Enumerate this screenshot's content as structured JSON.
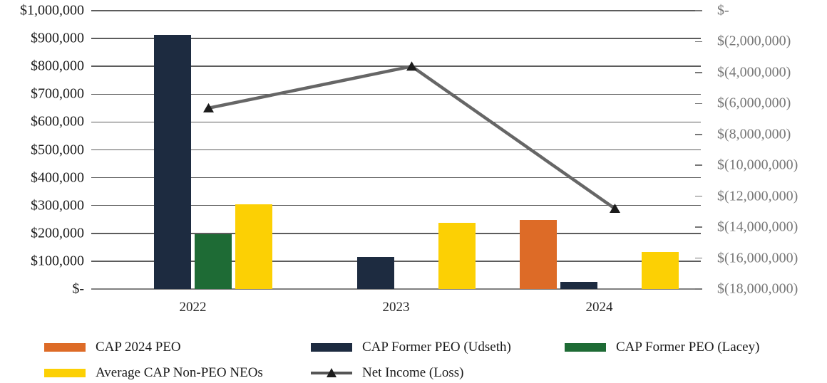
{
  "chart_data": {
    "type": "bar",
    "subtype": "grouped-bars-with-line-combo",
    "title": "",
    "categories": [
      "2022",
      "2023",
      "2024"
    ],
    "series": [
      {
        "name": "CAP 2024 PEO",
        "type": "bar",
        "color": "#dd6b27",
        "axis": "left",
        "values": [
          0,
          0,
          248000
        ]
      },
      {
        "name": "CAP Former PEO (Udseth)",
        "type": "bar",
        "color": "#1d2b40",
        "axis": "left",
        "values": [
          913000,
          115000,
          26000
        ]
      },
      {
        "name": "CAP Former PEO (Lacey)",
        "type": "bar",
        "color": "#1e6b35",
        "axis": "left",
        "values": [
          196000,
          0,
          0
        ]
      },
      {
        "name": "Average CAP Non-PEO NEOs",
        "type": "bar",
        "color": "#fcd004",
        "axis": "left",
        "values": [
          305000,
          237000,
          134000
        ]
      },
      {
        "name": "Net Income (Loss)",
        "type": "line",
        "color": "#666666",
        "marker": "triangle",
        "marker_color": "#1c1c1c",
        "axis": "right",
        "values": [
          -6300000,
          -3600000,
          -12800000
        ]
      }
    ],
    "left_axis": {
      "min": 0,
      "max": 1000000,
      "tick_step": 100000,
      "ticks": [
        "$1,000,000",
        "$900,000",
        "$800,000",
        "$700,000",
        "$600,000",
        "$500,000",
        "$400,000",
        "$300,000",
        "$200,000",
        "$100,000",
        "$-"
      ]
    },
    "right_axis": {
      "min": -18000000,
      "max": 0,
      "tick_step": 2000000,
      "ticks": [
        "$-",
        "$(2,000,000)",
        "$(4,000,000)",
        "$(6,000,000)",
        "$(8,000,000)",
        "$(10,000,000)",
        "$(12,000,000)",
        "$(14,000,000)",
        "$(16,000,000)",
        "$(18,000,000)"
      ]
    },
    "grid": "horizontal",
    "legend_position": "bottom",
    "legend": [
      {
        "label": "CAP 2024 PEO",
        "glyph": "rect",
        "color": "#dd6b27"
      },
      {
        "label": "CAP Former PEO (Udseth)",
        "glyph": "rect",
        "color": "#1d2b40"
      },
      {
        "label": "CAP Former PEO (Lacey)",
        "glyph": "rect",
        "color": "#1e6b35"
      },
      {
        "label": "Average CAP Non-PEO NEOs",
        "glyph": "rect",
        "color": "#fcd004"
      },
      {
        "label": "Net Income (Loss)",
        "glyph": "line-triangle",
        "color": "#555555"
      }
    ],
    "colors": {
      "background": "#ffffff",
      "gridline": "#5c5c5c",
      "axis_line": "#808080",
      "left_tick_text": "#1a1a1a",
      "right_tick_text": "#777777",
      "x_tick_text": "#262626"
    }
  }
}
